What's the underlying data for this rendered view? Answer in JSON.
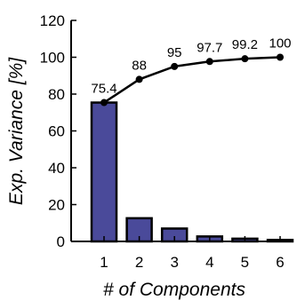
{
  "chart_data": {
    "type": "bar",
    "categories": [
      "1",
      "2",
      "3",
      "4",
      "5",
      "6"
    ],
    "series": [
      {
        "type": "bar",
        "values": [
          75.4,
          12.6,
          7.0,
          2.7,
          1.5,
          0.8
        ]
      },
      {
        "type": "line",
        "values": [
          75.4,
          88,
          95,
          97.7,
          99.2,
          100
        ]
      }
    ],
    "data_labels": [
      "75.4",
      "88",
      "95",
      "97.7",
      "99.2",
      "100"
    ],
    "xlabel": "# of Components",
    "ylabel": "Exp. Variance [%]",
    "ylim": [
      0,
      120
    ],
    "yticks": [
      0,
      20,
      40,
      60,
      80,
      100,
      120
    ],
    "grid": false,
    "colors": {
      "bar": "#4a4a9a",
      "line": "#000000",
      "axis": "#000000"
    }
  }
}
